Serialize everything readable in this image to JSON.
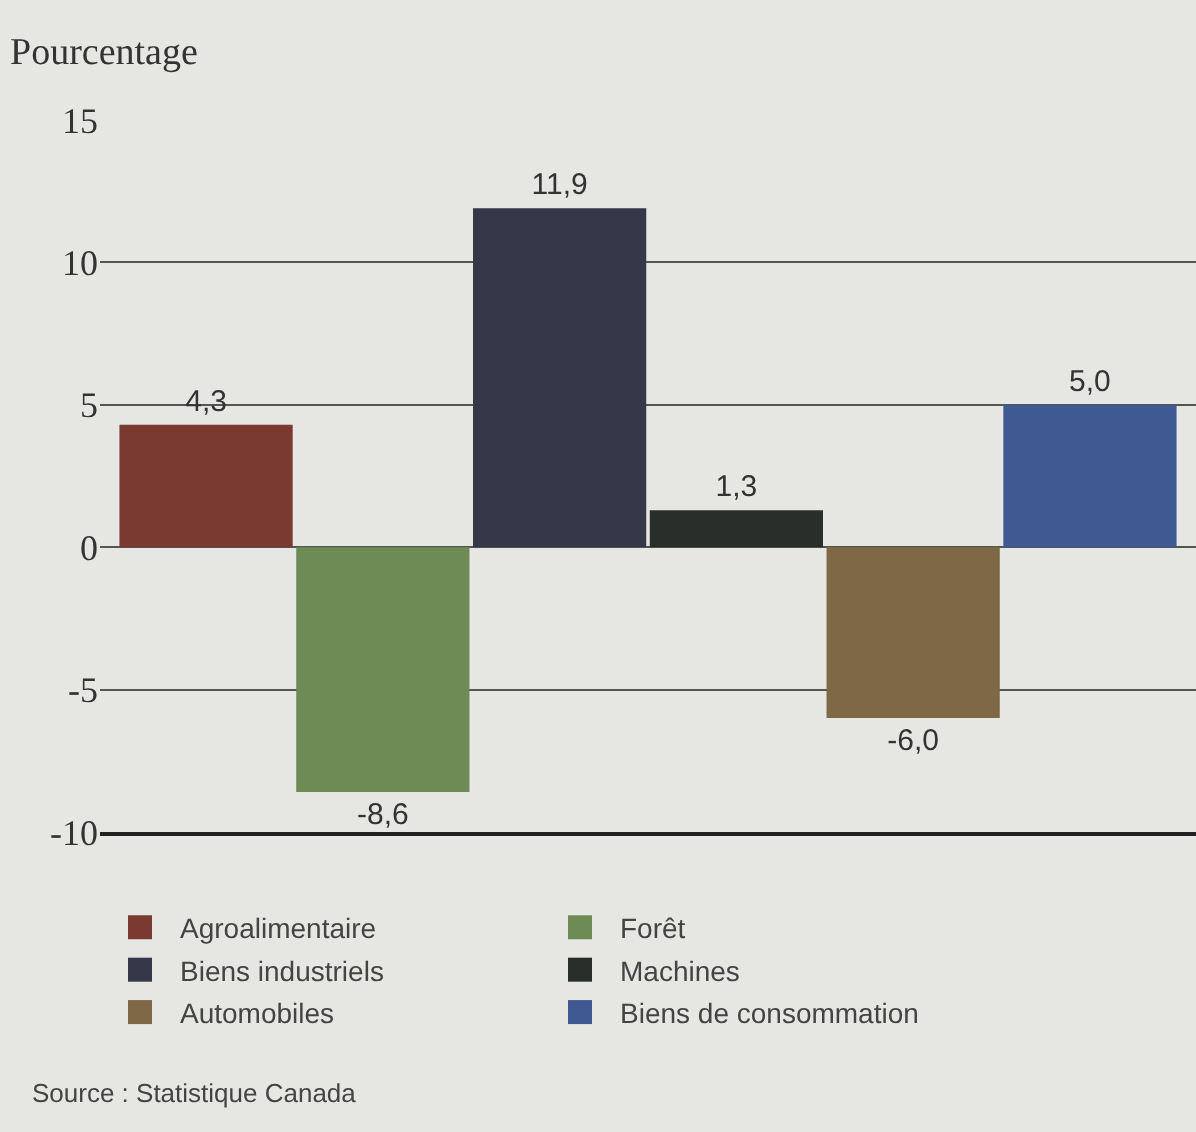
{
  "chart_data": {
    "type": "bar",
    "ylabel": "Pourcentage",
    "categories": [
      null,
      null,
      null,
      null,
      null,
      null
    ],
    "series": [
      {
        "name": "Agroalimentaire",
        "color": "#7a3a32",
        "values": [
          4.3,
          null,
          null,
          null,
          null,
          null
        ],
        "value_labels": [
          "4,3",
          null,
          null,
          null,
          null,
          null
        ]
      },
      {
        "name": "Forêt",
        "color": "#6e8a55",
        "values": [
          null,
          -8.6,
          null,
          null,
          null,
          null
        ],
        "value_labels": [
          null,
          "-8,6",
          null,
          null,
          null,
          null
        ]
      },
      {
        "name": "Biens industriels",
        "color": "#353848",
        "values": [
          null,
          null,
          11.9,
          null,
          null,
          null
        ],
        "value_labels": [
          null,
          null,
          "11,9",
          null,
          null,
          null
        ]
      },
      {
        "name": "Machines",
        "color": "#2a2e2a",
        "values": [
          null,
          null,
          null,
          1.3,
          null,
          null
        ],
        "value_labels": [
          null,
          null,
          null,
          "1,3",
          null,
          null
        ]
      },
      {
        "name": "Automobiles",
        "color": "#7e6845",
        "values": [
          null,
          null,
          null,
          null,
          -6.0,
          null
        ],
        "value_labels": [
          null,
          null,
          null,
          null,
          "-6,0",
          null
        ]
      },
      {
        "name": "Biens de consommation",
        "color": "#3f5a92",
        "values": [
          null,
          null,
          null,
          null,
          null,
          5.0
        ],
        "value_labels": [
          null,
          null,
          null,
          null,
          null,
          "5,0"
        ]
      }
    ],
    "ylim": [
      -10,
      15
    ],
    "yticks": [
      -10,
      -5,
      0,
      5,
      10,
      15
    ],
    "grid": "y",
    "legend": "bottom",
    "annotations": [
      "Source : Statistique Canada"
    ]
  }
}
